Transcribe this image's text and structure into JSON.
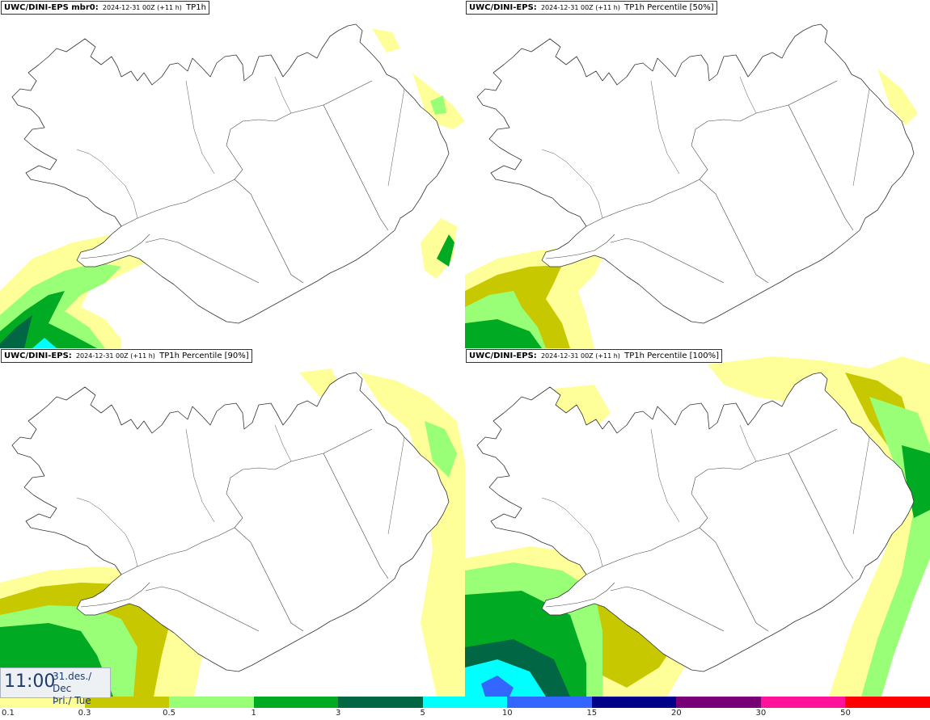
{
  "panels": [
    {
      "model": "UWC/DINI-EPS mbr0:",
      "run": "2024-12-31 00Z (+11 h)",
      "variable": "TP1h"
    },
    {
      "model": "UWC/DINI-EPS:",
      "run": "2024-12-31 00Z (+11 h)",
      "variable": "TP1h Percentile [50%]"
    },
    {
      "model": "UWC/DINI-EPS:",
      "run": "2024-12-31 00Z (+11 h)",
      "variable": "TP1h Percentile [90%]"
    },
    {
      "model": "UWC/DINI-EPS:",
      "run": "2024-12-31 00Z (+11 h)",
      "variable": "TP1h Percentile [100%]"
    }
  ],
  "valid_time": {
    "clock": "11:00",
    "date": "31.des./ Dec",
    "weekday": "Þri./ Tue"
  },
  "legend": {
    "labels": [
      "0.1",
      "0.3",
      "0.5",
      "1",
      "3",
      "5",
      "10",
      "15",
      "20",
      "30",
      "50"
    ],
    "colors": [
      "#ffff99",
      "#c8c800",
      "#99ff77",
      "#00aa22",
      "#006644",
      "#00ffff",
      "#3366ff",
      "#000088",
      "#770077",
      "#ff1199",
      "#ff0000"
    ]
  },
  "colors": {
    "c1": "#ffff99",
    "c2": "#c8c800",
    "c3": "#99ff77",
    "c4": "#00aa22",
    "c5": "#006644",
    "c6": "#00ffff",
    "c7": "#3366ff",
    "c8": "#000088",
    "outline": "#333333"
  }
}
